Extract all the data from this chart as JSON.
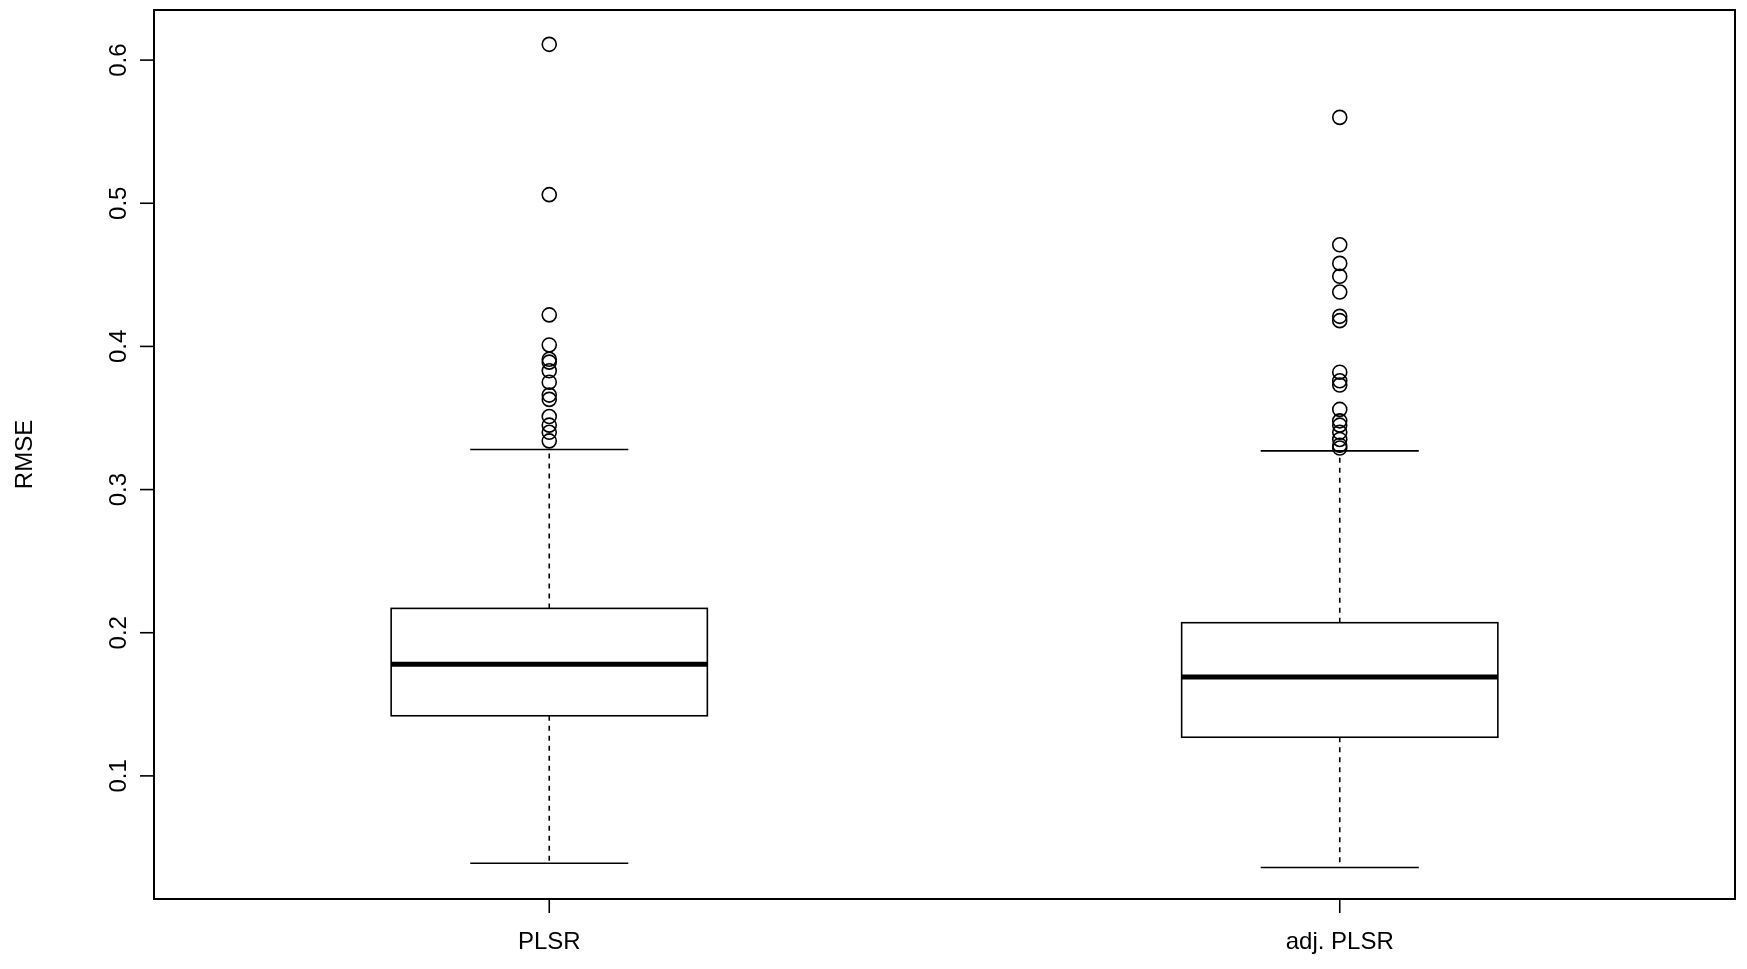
{
  "chart_data": {
    "type": "box",
    "ylabel": "RMSE",
    "categories": [
      "PLSR",
      "adj. PLSR"
    ],
    "ylim": [
      0.014,
      0.635
    ],
    "yticks": [
      0.1,
      0.2,
      0.3,
      0.4,
      0.5,
      0.6
    ],
    "grid": false,
    "boxes": [
      {
        "low": 0.039,
        "q1": 0.142,
        "median": 0.178,
        "q3": 0.217,
        "high": 0.328,
        "outliers": [
          0.611,
          0.506,
          0.422,
          0.401,
          0.391,
          0.389,
          0.383,
          0.375,
          0.366,
          0.363,
          0.351,
          0.345,
          0.34,
          0.334
        ]
      },
      {
        "low": 0.036,
        "q1": 0.127,
        "median": 0.169,
        "q3": 0.207,
        "high": 0.327,
        "outliers": [
          0.56,
          0.471,
          0.458,
          0.449,
          0.438,
          0.421,
          0.418,
          0.382,
          0.376,
          0.373,
          0.356,
          0.348,
          0.345,
          0.34,
          0.335,
          0.331,
          0.329
        ]
      }
    ]
  }
}
